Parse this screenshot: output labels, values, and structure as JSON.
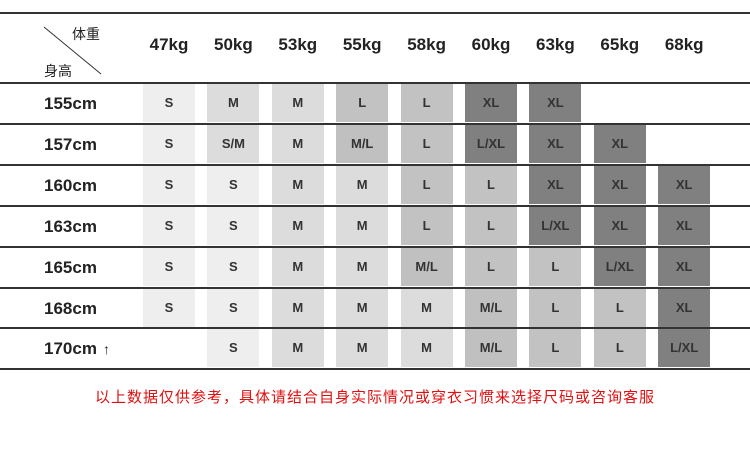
{
  "header": {
    "weight_label": "体重",
    "height_label": "身高"
  },
  "weights": [
    "47kg",
    "50kg",
    "53kg",
    "55kg",
    "58kg",
    "60kg",
    "63kg",
    "65kg",
    "68kg"
  ],
  "rows": [
    {
      "height": "155cm",
      "sizes": [
        "S",
        "M",
        "M",
        "L",
        "L",
        "XL",
        "XL",
        "",
        ""
      ]
    },
    {
      "height": "157cm",
      "sizes": [
        "S",
        "S/M",
        "M",
        "M/L",
        "L",
        "L/XL",
        "XL",
        "XL",
        ""
      ]
    },
    {
      "height": "160cm",
      "sizes": [
        "S",
        "S",
        "M",
        "M",
        "L",
        "L",
        "XL",
        "XL",
        "XL"
      ]
    },
    {
      "height": "163cm",
      "sizes": [
        "S",
        "S",
        "M",
        "M",
        "L",
        "L",
        "L/XL",
        "XL",
        "XL"
      ]
    },
    {
      "height": "165cm",
      "sizes": [
        "S",
        "S",
        "M",
        "M",
        "M/L",
        "L",
        "L",
        "L/XL",
        "XL"
      ]
    },
    {
      "height": "168cm",
      "sizes": [
        "S",
        "S",
        "M",
        "M",
        "M",
        "M/L",
        "L",
        "L",
        "XL"
      ]
    },
    {
      "height": "170cm",
      "height_suffix": "↑",
      "sizes": [
        "",
        "S",
        "M",
        "M",
        "M",
        "M/L",
        "L",
        "L",
        "L/XL"
      ]
    }
  ],
  "size_colors": {
    "S": "#eeeeee",
    "S/M": "#dcdcdc",
    "M": "#dcdcdc",
    "M/L": "#c0c0c0",
    "L": "#c2c2c2",
    "L/XL": "#808080",
    "XL": "#808080"
  },
  "note": "以上数据仅供参考，具体请结合自身实际情况或穿衣习惯来选择尺码或咨询客服",
  "note_color": "#e01010"
}
